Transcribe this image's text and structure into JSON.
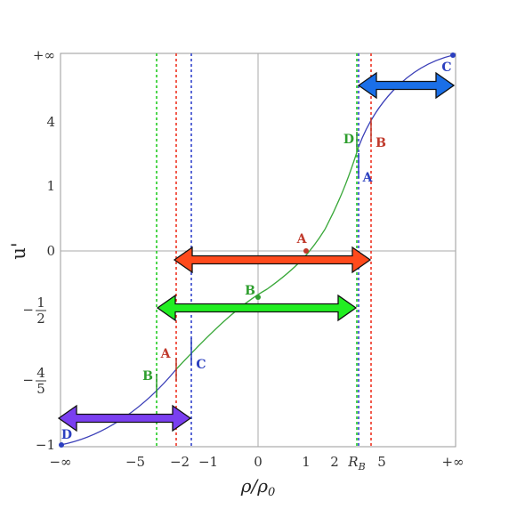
{
  "chart_data": {
    "type": "line",
    "title": "",
    "xlabel": "ρ/ρ0",
    "ylabel": "u'",
    "x_scale": "compactified (−∞ to +∞)",
    "y_scale": "compactified (−1 to +∞)",
    "x_ticks": [
      "−∞",
      "−5",
      "−2",
      "−1",
      "0",
      "1",
      "2",
      "R_B",
      "5",
      "+∞"
    ],
    "y_ticks": [
      "−1",
      "−4/5",
      "−1/2",
      "0",
      "1",
      "4",
      "+∞"
    ],
    "grid": "axes at x=0 and y=0",
    "colors": {
      "curve_D_to_B": "#3b3fb8",
      "curve_B_to_C": "#3aa83a",
      "A": "#c0392b",
      "B": "#2e9e2e",
      "C": "#2b3fbf",
      "D": "#2b3fbf",
      "arrow_A": "#ff4a1c",
      "arrow_B": "#22ee22",
      "arrow_C": "#1a6fe8",
      "arrow_D": "#7a3ff0"
    },
    "series": [
      {
        "name": "",
        "points": [
          [
            "−∞",
            -1
          ],
          [
            -2,
            -0.8
          ],
          [
            0,
            -0.5
          ],
          [
            1,
            0
          ],
          [
            3,
            1
          ],
          [
            4,
            4
          ],
          [
            "+∞",
            "+∞"
          ]
        ]
      }
    ],
    "vertical_lines": [
      {
        "x": -3,
        "color": "green",
        "style": "dotted"
      },
      {
        "x": -2,
        "color": "red",
        "style": "dotted"
      },
      {
        "x": -1.6,
        "color": "blue",
        "style": "dotted"
      },
      {
        "x": "R_B",
        "color": "green",
        "style": "dotted"
      },
      {
        "x": 3.2,
        "color": "blue",
        "style": "dotted"
      },
      {
        "x": 4.2,
        "color": "red",
        "style": "dotted"
      }
    ],
    "point_labels": [
      "A",
      "B",
      "C",
      "D",
      "A",
      "B",
      "C",
      "D",
      "B",
      "A",
      "C"
    ],
    "intervals": [
      {
        "label": "C"
      },
      {
        "label": "A"
      },
      {
        "label": "B"
      },
      {
        "label": "D"
      }
    ]
  }
}
